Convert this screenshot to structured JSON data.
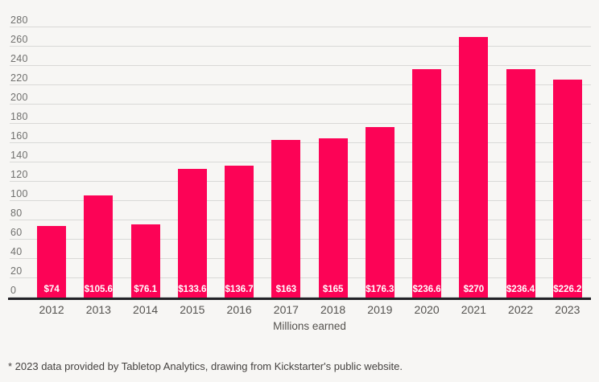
{
  "chart_data": {
    "type": "bar",
    "title": "",
    "categories": [
      "2012",
      "2013",
      "2014",
      "2015",
      "2016",
      "2017",
      "2018",
      "2019",
      "2020",
      "2021",
      "2022",
      "2023"
    ],
    "values": [
      74,
      105.6,
      76.1,
      133.6,
      136.7,
      163,
      165,
      176.3,
      236.6,
      270,
      236.4,
      226.2
    ],
    "bar_labels": [
      "$74",
      "$105.6",
      "$76.1",
      "$133.6",
      "$136.7",
      "$163",
      "$165",
      "$176.3",
      "$236.6",
      "$270",
      "$236.4",
      "$226.2"
    ],
    "xlabel": "Millions earned",
    "ylabel": "",
    "ylim": [
      0,
      280
    ],
    "yticks": [
      0,
      20,
      40,
      60,
      80,
      100,
      120,
      140,
      160,
      180,
      200,
      220,
      240,
      260,
      280
    ],
    "grid": true,
    "legend": false
  },
  "footnote": "* 2023 data provided by Tabletop Analytics, drawing from Kickstarter's public website.",
  "colors": {
    "background": "#f7f6f4",
    "gridline": "#d9d9d7",
    "axis_line": "#222227",
    "bar": "#fc0356",
    "bar_label": "#ffffff",
    "ytick_label": "#70706e",
    "xtick_label": "#54524f",
    "footnote": "#454240"
  }
}
